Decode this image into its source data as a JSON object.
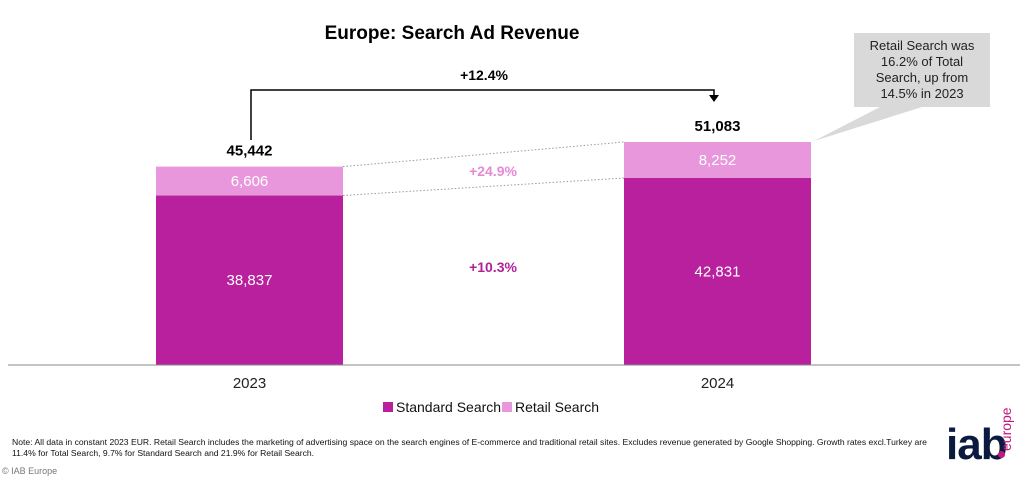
{
  "chart_data": {
    "type": "bar",
    "stacked": true,
    "title": "Europe: Search Ad Revenue",
    "categories": [
      "2023",
      "2024"
    ],
    "series": [
      {
        "name": "Standard Search",
        "values": [
          38837,
          42831
        ],
        "labels": [
          "38,837",
          "42,831"
        ]
      },
      {
        "name": "Retail Search",
        "values": [
          6606,
          8252
        ],
        "labels": [
          "6,606",
          "8,252"
        ]
      }
    ],
    "totals": [
      "45,442",
      "51,083"
    ],
    "total_values": [
      45442,
      51083
    ],
    "growth": {
      "total": "+12.4%",
      "retail": "+24.9%",
      "standard": "+10.3%"
    },
    "callout": [
      "Retail Search was",
      "16.2% of Total",
      "Search, up from",
      "14.5% in 2023"
    ],
    "legend_position": "bottom",
    "grid": false,
    "colors": {
      "standard": "#b8209e",
      "retail": "#e897dc",
      "growth_retail": "#e58ad6",
      "growth_standard": "#b01f96",
      "callout_bg": "#d9d9d9"
    }
  },
  "note": "Note: All data in constant 2023 EUR. Retail Search includes the marketing of advertising space on the search engines of E-commerce and traditional retail sites. Excludes revenue generated by Google Shopping. Growth rates excl.Turkey are 11.4% for Total Search, 9.7% for Standard Search and 21.9% for Retail Search.",
  "copyright": "© IAB Europe",
  "logo": {
    "main": "iab",
    "sub": "europe"
  }
}
